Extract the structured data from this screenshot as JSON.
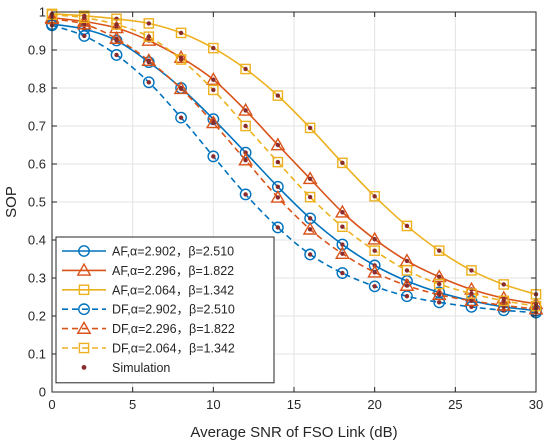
{
  "chart_data": {
    "type": "line",
    "title": "",
    "xlabel": "Average SNR of FSO Link (dB)",
    "ylabel": "SOP",
    "xlim": [
      0,
      30
    ],
    "ylim": [
      0,
      1
    ],
    "xticks": [
      0,
      5,
      10,
      15,
      20,
      25,
      30
    ],
    "yticks": [
      0,
      0.1,
      0.2,
      0.3,
      0.4,
      0.5,
      0.6,
      0.7,
      0.8,
      0.9,
      1
    ],
    "xtick_labels": [
      "0",
      "5",
      "10",
      "15",
      "20",
      "25",
      "30"
    ],
    "ytick_labels": [
      "0",
      "0.1",
      "0.2",
      "0.3",
      "0.4",
      "0.5",
      "0.6",
      "0.7",
      "0.8",
      "0.9",
      "1"
    ],
    "grid": true,
    "legend_position": "bottom-left",
    "x": [
      0,
      2,
      4,
      6,
      8,
      10,
      12,
      14,
      16,
      18,
      20,
      22,
      24,
      26,
      28,
      30
    ],
    "series": [
      {
        "name": "AF,α=2.902，β=2.510",
        "color": "#0072BD",
        "dash": "solid",
        "marker": "circle",
        "values": [
          0.968,
          0.955,
          0.925,
          0.868,
          0.8,
          0.718,
          0.63,
          0.54,
          0.457,
          0.388,
          0.333,
          0.292,
          0.262,
          0.24,
          0.224,
          0.214
        ]
      },
      {
        "name": "AF,α=2.296，β=1.822",
        "color": "#D95319",
        "dash": "solid",
        "marker": "triangle",
        "values": [
          0.985,
          0.975,
          0.958,
          0.925,
          0.88,
          0.822,
          0.741,
          0.65,
          0.561,
          0.473,
          0.402,
          0.345,
          0.303,
          0.27,
          0.247,
          0.232
        ]
      },
      {
        "name": "AF,α=2.064，β=1.342",
        "color": "#EDB120",
        "dash": "solid",
        "marker": "square",
        "values": [
          0.995,
          0.99,
          0.982,
          0.97,
          0.945,
          0.905,
          0.85,
          0.78,
          0.695,
          0.603,
          0.515,
          0.437,
          0.372,
          0.32,
          0.283,
          0.257
        ]
      },
      {
        "name": "DF,α=2.902，β=2.510",
        "color": "#0072BD",
        "dash": "dashed",
        "marker": "circle",
        "values": [
          0.965,
          0.937,
          0.887,
          0.815,
          0.722,
          0.62,
          0.52,
          0.433,
          0.362,
          0.313,
          0.278,
          0.252,
          0.236,
          0.224,
          0.215,
          0.209
        ]
      },
      {
        "name": "DF,α=2.296，β=1.822",
        "color": "#D95319",
        "dash": "dashed",
        "marker": "triangle",
        "values": [
          0.982,
          0.968,
          0.93,
          0.872,
          0.798,
          0.708,
          0.61,
          0.512,
          0.428,
          0.364,
          0.315,
          0.28,
          0.256,
          0.24,
          0.228,
          0.218
        ]
      },
      {
        "name": "DF,α=2.064，β=1.342",
        "color": "#EDB120",
        "dash": "dashed",
        "marker": "square",
        "values": [
          0.993,
          0.985,
          0.967,
          0.935,
          0.875,
          0.795,
          0.7,
          0.605,
          0.513,
          0.435,
          0.372,
          0.32,
          0.284,
          0.259,
          0.24,
          0.226
        ]
      }
    ],
    "simulation": {
      "name": "Simulation",
      "color": "#8B2C2C",
      "marker": "dot"
    }
  }
}
